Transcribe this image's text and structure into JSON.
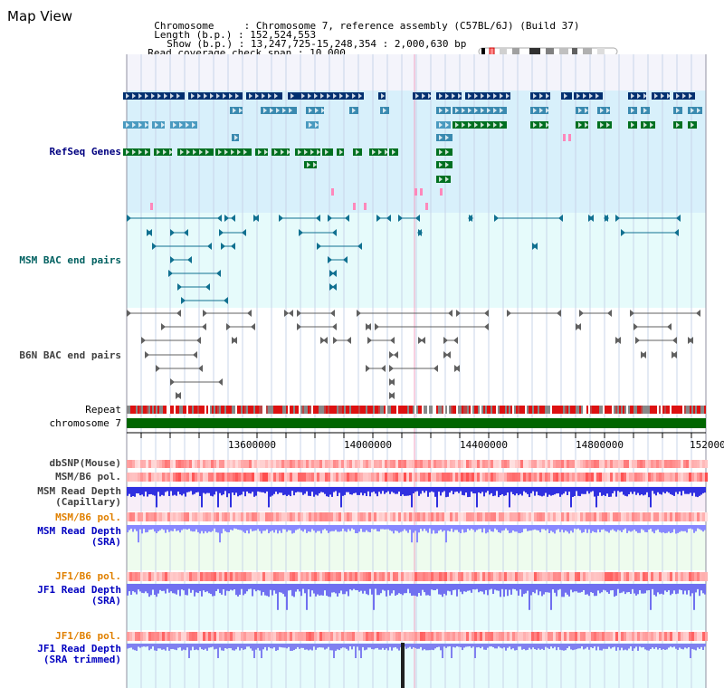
{
  "app_title": "Map View",
  "header": {
    "chromosome_label": "Chromosome",
    "chromosome_value": "Chromosome 7, reference assembly (C57BL/6J) (Build 37)",
    "length_label": "Length (b.p.)",
    "length_value": "152,524,553",
    "show_label": "Show (b.p.)",
    "show_value": "13,247,725-15,248,354 : 2,000,630 bp",
    "coverage_label": "Read coverage check span",
    "coverage_value": "10,000"
  },
  "tracks": {
    "refseq": {
      "label": "RefSeq Genes",
      "color": "#000080"
    },
    "msm_bac": {
      "label": "MSM BAC end pairs",
      "color": "#006060"
    },
    "b6n_bac": {
      "label": "B6N BAC end pairs",
      "color": "#404040"
    },
    "repeat": {
      "label": "Repeat"
    },
    "chromosome": {
      "label": "chromosome 7"
    },
    "dbsnp": {
      "label": "dbSNP(Mouse)"
    },
    "msm_b6_pol": {
      "label": "MSM/B6 pol."
    },
    "msm_depth_cap": {
      "label1": "MSM Read Depth",
      "label2": "(Capillary)"
    },
    "msm_b6_pol2": {
      "label": "MSM/B6 pol.",
      "color": "#e08000"
    },
    "msm_depth_sra": {
      "label1": "MSM Read Depth",
      "label2": "(SRA)",
      "color": "#0000c0"
    },
    "jf1_b6_pol": {
      "label": "JF1/B6 pol.",
      "color": "#e08000"
    },
    "jf1_depth_sra": {
      "label1": "JF1 Read Depth",
      "label2": "(SRA)",
      "color": "#0000c0"
    },
    "jf1_b6_pol2": {
      "label": "JF1/B6 pol.",
      "color": "#e08000"
    },
    "jf1_depth_trim": {
      "label1": "JF1 Read Depth",
      "label2": "(SRA trimmed)",
      "color": "#0000c0"
    }
  },
  "axis": {
    "ticks": [
      "13600000",
      "14000000",
      "14400000",
      "14800000",
      "15200000"
    ]
  }
}
